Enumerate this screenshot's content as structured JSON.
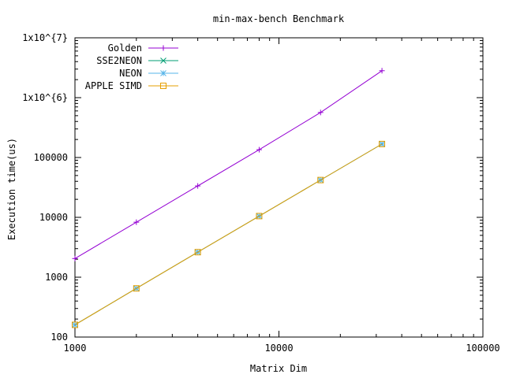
{
  "chart_data": {
    "type": "line",
    "title": "min-max-bench Benchmark",
    "xlabel": "Matrix Dim",
    "ylabel": "Execution time(us)",
    "x_scale": "log",
    "y_scale": "log",
    "xlim": [
      1000,
      100000
    ],
    "ylim": [
      100,
      10000000
    ],
    "x_ticks": [
      {
        "value": 1000,
        "label": "1000"
      },
      {
        "value": 10000,
        "label": "10000"
      },
      {
        "value": 100000,
        "label": "100000"
      }
    ],
    "y_ticks": [
      {
        "value": 100,
        "label": "100"
      },
      {
        "value": 1000,
        "label": "1000"
      },
      {
        "value": 10000,
        "label": "10000"
      },
      {
        "value": 100000,
        "label": "100000"
      },
      {
        "value": 1000000,
        "label": "1x10^{6}"
      },
      {
        "value": 10000000,
        "label": "1x10^{7}"
      }
    ],
    "grid": false,
    "legend_position": "top-left",
    "x": [
      1000,
      2000,
      4000,
      8000,
      16000,
      32000
    ],
    "series": [
      {
        "name": "Golden",
        "color": "#9400d3",
        "marker": "plus",
        "values": [
          2050,
          8300,
          33500,
          135000,
          565000,
          2820000
        ]
      },
      {
        "name": "SSE2NEON",
        "color": "#009e73",
        "marker": "cross",
        "values": [
          160,
          650,
          2620,
          10500,
          42000,
          168000
        ]
      },
      {
        "name": "NEON",
        "color": "#56b4e9",
        "marker": "star",
        "values": [
          160,
          650,
          2620,
          10500,
          42000,
          168000
        ]
      },
      {
        "name": "APPLE SIMD",
        "color": "#e69f00",
        "marker": "square",
        "values": [
          160,
          650,
          2620,
          10500,
          42000,
          168000
        ]
      }
    ]
  }
}
